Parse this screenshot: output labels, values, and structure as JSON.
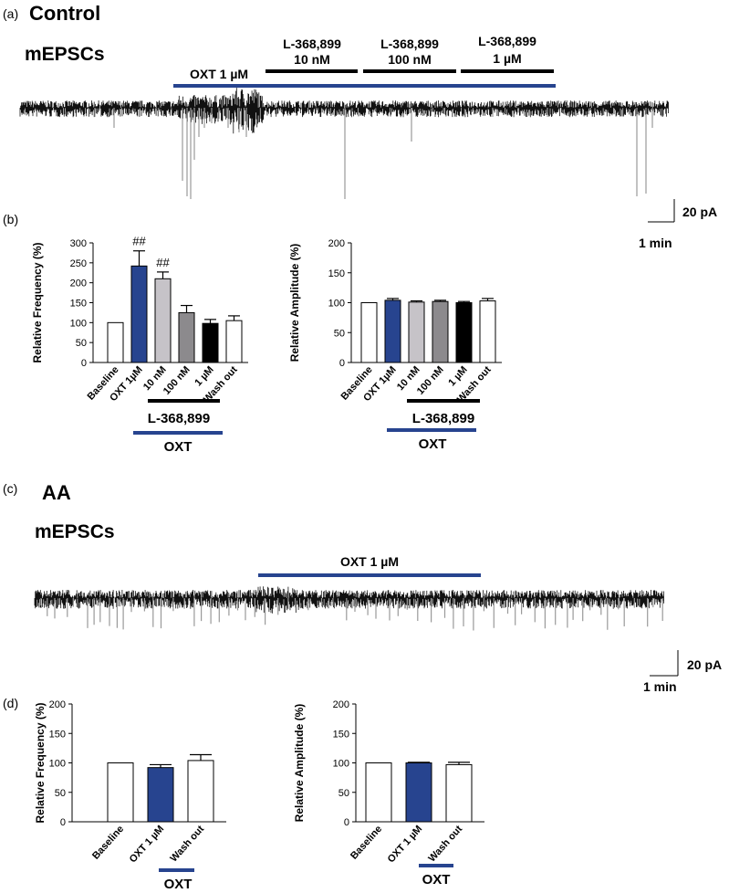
{
  "colors": {
    "oxt_bar": "#27448f",
    "white_bar": "#ffffff",
    "light_gray": "#c6c3c8",
    "mid_gray": "#8c8a8d",
    "black": "#000000",
    "trace": "#111111",
    "trace_spike": "#9a9a9a"
  },
  "panel_a": {
    "label": "(a)",
    "title": "Control",
    "trace_label": "mEPSCs",
    "oxt_label": "OXT 1 µM",
    "antagonists": [
      {
        "line1": "L-368,899",
        "line2": "10 nM"
      },
      {
        "line1": "L-368,899",
        "line2": "100 nM"
      },
      {
        "line1": "L-368,899",
        "line2": "1 µM"
      }
    ],
    "scale_y": "20 pA",
    "scale_x": "1 min"
  },
  "panel_b": {
    "label": "(b)",
    "bracket_drug": "L-368,899",
    "bracket_oxt": "OXT"
  },
  "panel_c": {
    "label": "(c)",
    "title": "AA",
    "trace_label": "mEPSCs",
    "oxt_label": "OXT 1 µM",
    "scale_y": "20 pA",
    "scale_x": "1 min"
  },
  "panel_d": {
    "label": "(d)",
    "bracket_oxt": "OXT"
  },
  "chart_data": [
    {
      "type": "bar",
      "panel": "b-left",
      "ylabel": "Relative Frequency (%)",
      "ylim": [
        0,
        300
      ],
      "yticks": [
        0,
        50,
        100,
        150,
        200,
        250,
        300
      ],
      "categories": [
        "Baseline",
        "OXT 1µM",
        "10 nM",
        "100 nM",
        "1 µM",
        "Wash out"
      ],
      "values": [
        100,
        242,
        210,
        125,
        98,
        105
      ],
      "errors": [
        0,
        38,
        17,
        18,
        10,
        12
      ],
      "colors": [
        "#ffffff",
        "#27448f",
        "#c6c3c8",
        "#8c8a8d",
        "#000000",
        "#ffffff"
      ],
      "annotations": [
        {
          "category": "OXT 1µM",
          "text": "##"
        },
        {
          "category": "10 nM",
          "text": "##"
        }
      ]
    },
    {
      "type": "bar",
      "panel": "b-right",
      "ylabel": "Relative Amplitude (%)",
      "ylim": [
        0,
        200
      ],
      "yticks": [
        0,
        50,
        100,
        150,
        200
      ],
      "categories": [
        "Baseline",
        "OXT 1µM",
        "10 nM",
        "100 nM",
        "1 µM",
        "Wash out"
      ],
      "values": [
        100,
        104,
        101,
        102,
        100,
        103
      ],
      "errors": [
        0,
        3,
        2,
        2,
        2,
        4
      ],
      "colors": [
        "#ffffff",
        "#27448f",
        "#c6c3c8",
        "#8c8a8d",
        "#000000",
        "#ffffff"
      ],
      "annotations": []
    },
    {
      "type": "bar",
      "panel": "d-left",
      "ylabel": "Relative Frequency (%)",
      "ylim": [
        0,
        200
      ],
      "yticks": [
        0,
        50,
        100,
        150,
        200
      ],
      "categories": [
        "Baseline",
        "OXT 1 µM",
        "Wash out"
      ],
      "values": [
        100,
        92,
        104
      ],
      "errors": [
        0,
        5,
        10
      ],
      "colors": [
        "#ffffff",
        "#27448f",
        "#ffffff"
      ],
      "annotations": []
    },
    {
      "type": "bar",
      "panel": "d-right",
      "ylabel": "Relative Amplitude (%)",
      "ylim": [
        0,
        200
      ],
      "yticks": [
        0,
        50,
        100,
        150,
        200
      ],
      "categories": [
        "Baseline",
        "OXT 1 µM",
        "Wash out"
      ],
      "values": [
        100,
        100,
        97
      ],
      "errors": [
        0,
        1,
        4
      ],
      "colors": [
        "#ffffff",
        "#27448f",
        "#ffffff"
      ],
      "annotations": []
    }
  ]
}
